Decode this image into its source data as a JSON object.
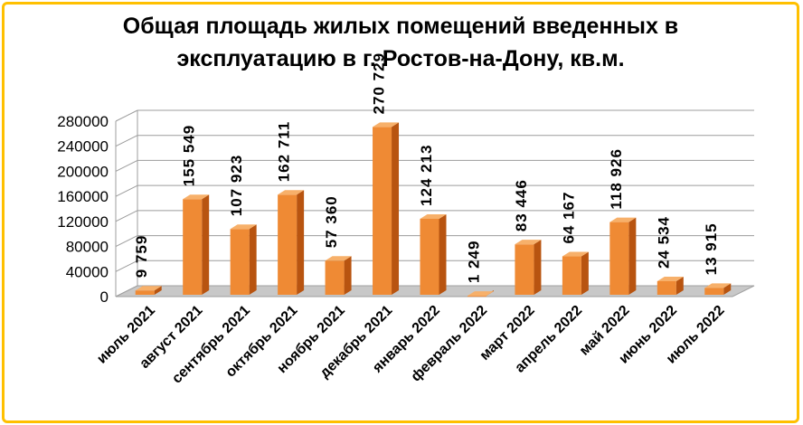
{
  "chart_data": {
    "type": "bar",
    "title_line1": "Общая площадь жилых помещений введенных в",
    "title_line2": "эксплуатацию в г. Ростов-на-Дону, кв.м.",
    "categories": [
      "июль 2021",
      "август 2021",
      "сентябрь 2021",
      "октябрь 2021",
      "ноябрь 2021",
      "декабрь 2021",
      "январь 2022",
      "февраль 2022",
      "март 2022",
      "апрель 2022",
      "май 2022",
      "июнь 2022",
      "июль 2022"
    ],
    "values": [
      9759,
      155549,
      107923,
      162711,
      57360,
      270729,
      124213,
      1249,
      83446,
      64167,
      118926,
      24534,
      13915
    ],
    "value_labels": [
      "9 759",
      "155 549",
      "107 923",
      "162 711",
      "57 360",
      "270 729",
      "124 213",
      "1 249",
      "83 446",
      "64 167",
      "118 926",
      "24 534",
      "13 915"
    ],
    "ylim": [
      0,
      280000
    ],
    "yticks": [
      0,
      40000,
      80000,
      120000,
      160000,
      200000,
      240000,
      280000
    ],
    "grid": true,
    "colors": {
      "bar_front": "#ef8a34",
      "bar_side": "#b85410",
      "bar_top": "#f7b06a",
      "grid": "#9c9c9c",
      "frame": "#ffc000"
    }
  }
}
